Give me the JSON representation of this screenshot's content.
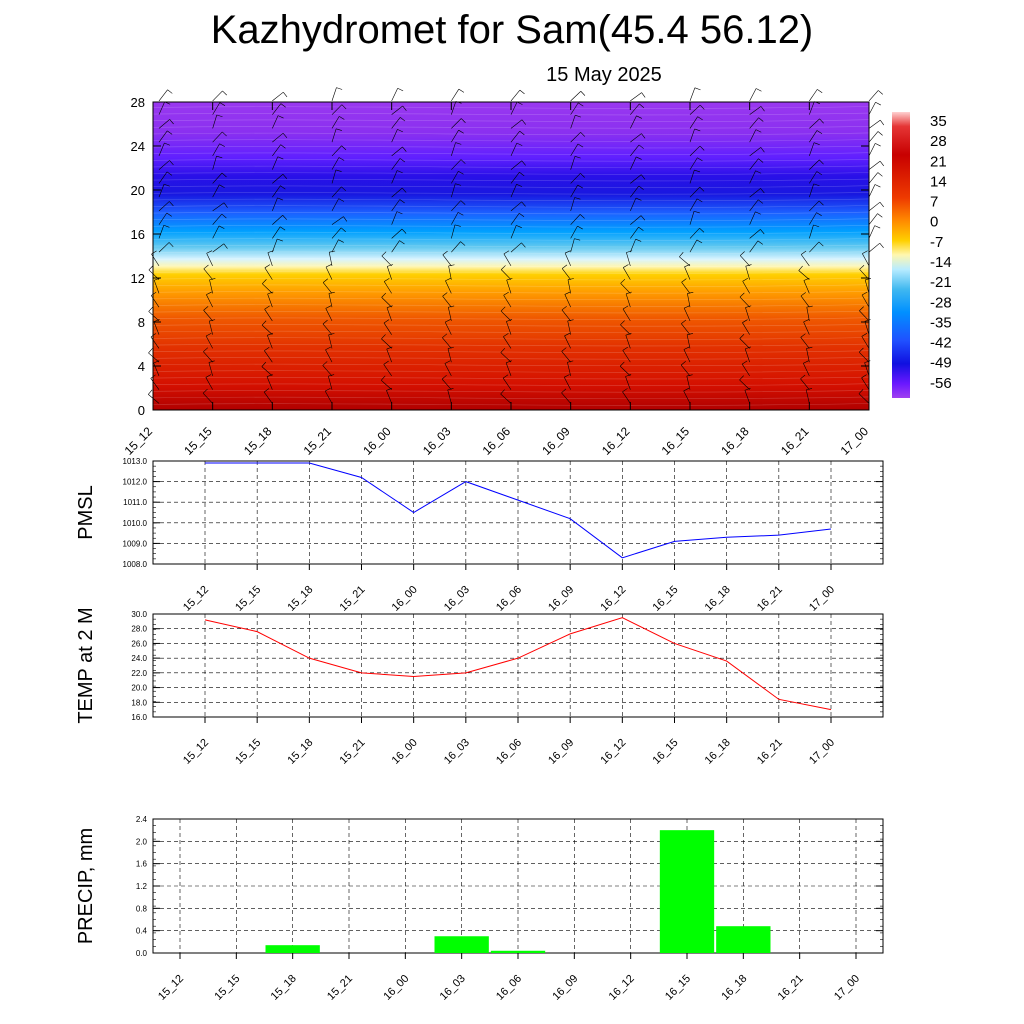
{
  "title": "Kazhydromet for Sam(45.4 56.12)",
  "subtitle": "15 May 2025",
  "colors": {
    "pmsl_line": "#0000ff",
    "temp_line": "#ff0000",
    "precip_bar": "#00ff00",
    "colorbar": [
      "#ffcccc",
      "#e53030",
      "#cc0000",
      "#e02000",
      "#f04000",
      "#ff6a00",
      "#ff9a00",
      "#ffc400",
      "#fff8b0",
      "#c8f0ff",
      "#60c8f0",
      "#00a0ff",
      "#2060ff",
      "#1010e0",
      "#5a00ff",
      "#8a2be2",
      "#b040f0"
    ]
  },
  "chart_data": [
    {
      "type": "heatmap",
      "name": "cross-section",
      "categories": [
        "15_12",
        "15_15",
        "15_18",
        "15_21",
        "16_00",
        "16_03",
        "16_06",
        "16_09",
        "16_12",
        "16_15",
        "16_18",
        "16_21",
        "17_00"
      ],
      "ylim": [
        0,
        28
      ],
      "y_ticks": [
        "0",
        "4",
        "8",
        "12",
        "16",
        "20",
        "24",
        "28"
      ],
      "colorbar_labels": [
        "35",
        "28",
        "21",
        "14",
        "7",
        "0",
        "-7",
        "-14",
        "-21",
        "-28",
        "-35",
        "-42",
        "-49",
        "-56"
      ],
      "bands": [
        {
          "from": 0,
          "to": 13,
          "range": [
            35,
            0
          ]
        },
        {
          "from": 13,
          "to": 14.5,
          "range": [
            0,
            -14
          ]
        },
        {
          "from": 14.5,
          "to": 20,
          "range": [
            -14,
            -56
          ]
        },
        {
          "from": 20,
          "to": 28,
          "range": [
            -56,
            -63
          ]
        }
      ],
      "wind_barbs": true
    },
    {
      "type": "line",
      "ylabel": "PMSL",
      "categories": [
        "15_12",
        "15_15",
        "15_18",
        "15_21",
        "16_00",
        "16_03",
        "16_06",
        "16_09",
        "16_12",
        "16_15",
        "16_18",
        "16_21",
        "17_00"
      ],
      "values": [
        1012.9,
        1012.9,
        1012.9,
        1012.2,
        1010.5,
        1012.0,
        1011.1,
        1010.2,
        1008.3,
        1009.1,
        1009.3,
        1009.4,
        1009.7
      ],
      "ylim": [
        1008.0,
        1013.0
      ],
      "y_ticks": [
        "1008.0",
        "1009.0",
        "1010.0",
        "1011.0",
        "1012.0",
        "1013.0"
      ],
      "grid": true
    },
    {
      "type": "line",
      "ylabel": "TEMP at 2 M",
      "categories": [
        "15_12",
        "15_15",
        "15_18",
        "15_21",
        "16_00",
        "16_03",
        "16_06",
        "16_09",
        "16_12",
        "16_15",
        "16_18",
        "16_21",
        "17_00"
      ],
      "values": [
        29.2,
        27.6,
        24.0,
        22.0,
        21.5,
        22.0,
        24.0,
        27.3,
        29.5,
        26.0,
        23.6,
        18.4,
        17.0
      ],
      "ylim": [
        16.0,
        30.0
      ],
      "y_ticks": [
        "16.0",
        "18.0",
        "20.0",
        "22.0",
        "24.0",
        "26.0",
        "28.0",
        "30.0"
      ],
      "grid": true
    },
    {
      "type": "bar",
      "ylabel": "PRECIP, mm",
      "categories": [
        "15_12",
        "15_15",
        "15_18",
        "15_21",
        "16_00",
        "16_03",
        "16_06",
        "16_09",
        "16_12",
        "16_15",
        "16_18",
        "16_21",
        "17_00"
      ],
      "values": [
        0,
        0,
        0.14,
        0,
        0,
        0.3,
        0.04,
        0,
        0,
        2.2,
        0.48,
        0,
        0
      ],
      "ylim": [
        0.0,
        2.4
      ],
      "y_ticks": [
        "0.0",
        "0.4",
        "0.8",
        "1.2",
        "1.6",
        "2.0",
        "2.4"
      ],
      "grid": true
    }
  ]
}
